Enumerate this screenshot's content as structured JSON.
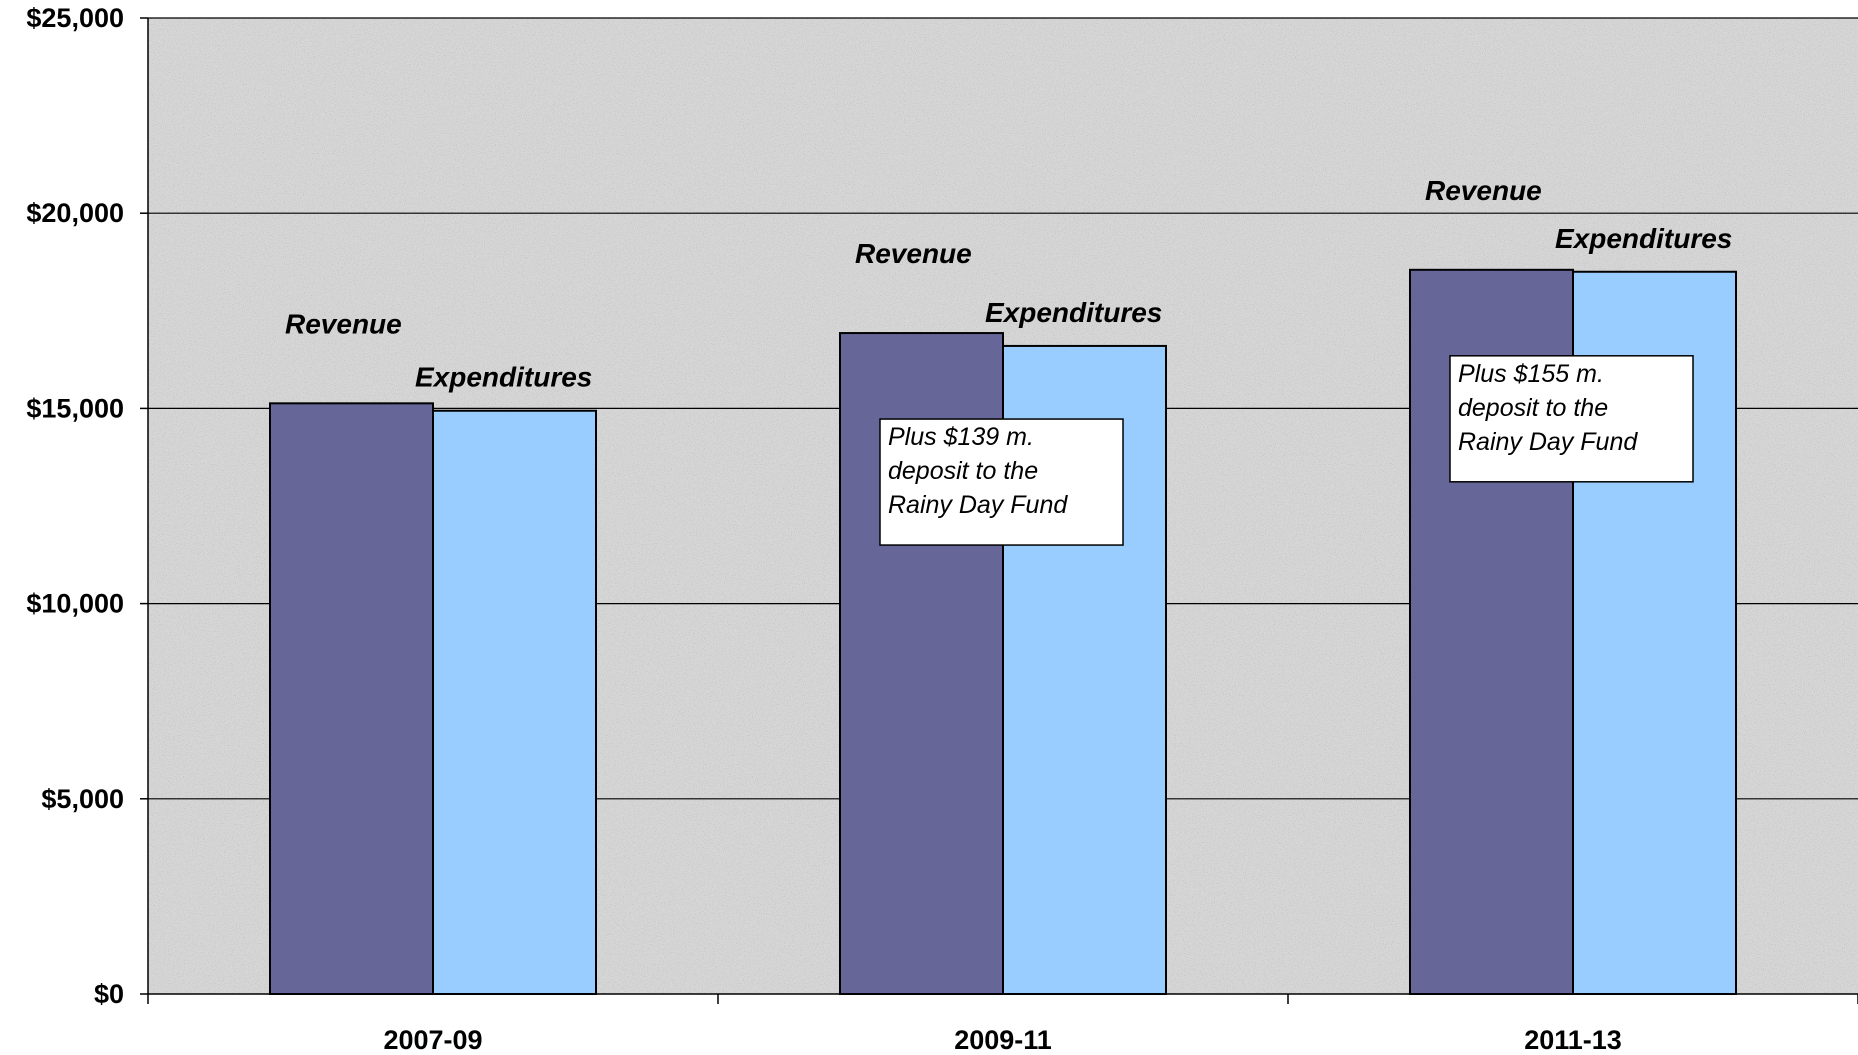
{
  "chart_data": {
    "type": "bar",
    "title": "",
    "xlabel": "",
    "ylabel": "",
    "categories": [
      "2007-09",
      "2009-11",
      "2011-13"
    ],
    "series": [
      {
        "name": "Revenue",
        "values": [
          15130,
          16930,
          18550
        ],
        "color": "#666699"
      },
      {
        "name": "Expenditures",
        "values": [
          14940,
          16600,
          18500
        ],
        "color": "#99ccff"
      }
    ],
    "ylim": [
      0,
      25000
    ],
    "yticks": [
      0,
      5000,
      10000,
      15000,
      20000,
      25000
    ],
    "ytick_labels": [
      "$0",
      "$5,000",
      "$10,000",
      "$15,000",
      "$20,000",
      "$25,000"
    ],
    "gridlines": true,
    "plot_background": "#d6d6d6",
    "annotations": [
      {
        "category": "2009-11",
        "lines": [
          "Plus $139 m.",
          "deposit to the",
          "Rainy Day Fund"
        ]
      },
      {
        "category": "2011-13",
        "lines": [
          "Plus $155 m.",
          "deposit to the",
          "Rainy Day Fund"
        ]
      }
    ]
  }
}
